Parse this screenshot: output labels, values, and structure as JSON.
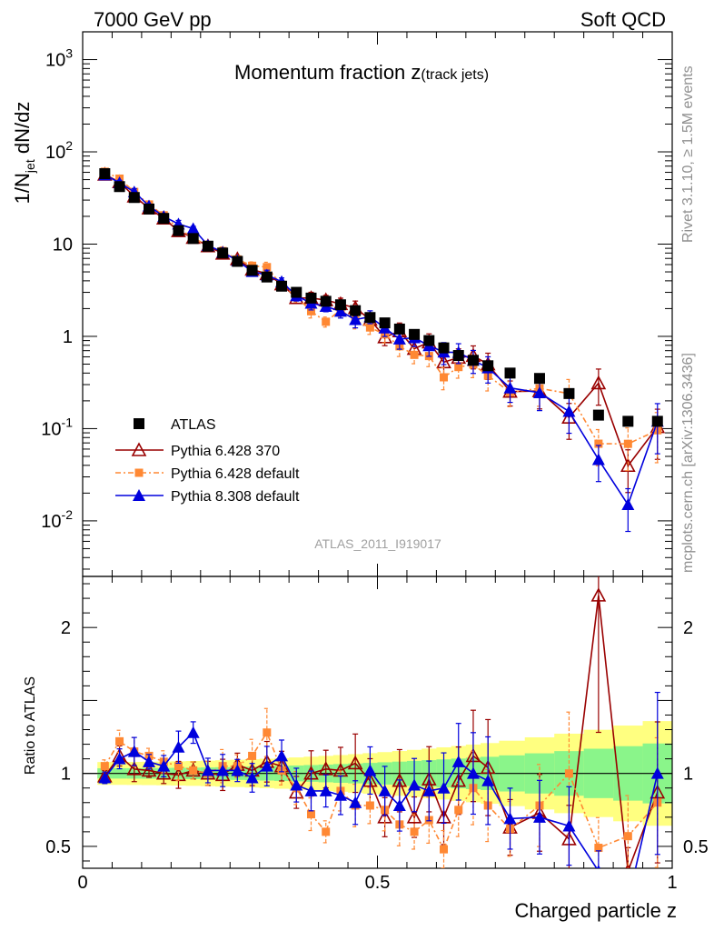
{
  "header": {
    "left": "7000 GeV pp",
    "right": "Soft QCD"
  },
  "side": {
    "rivet": "Rivet 3.1.10, ≥ 1.5M events",
    "mcplots": "mcplots.cern.ch [arXiv:1306.3436]"
  },
  "chart_data": {
    "type": "scatter",
    "title_main": "Momentum fraction z",
    "title_sub": "(track jets)",
    "analysis_id": "ATLAS_2011_I919017",
    "xlabel": "Charged particle z",
    "ylabel_main": {
      "a": "1/N",
      "sub": "jet",
      "b": " dN/dz"
    },
    "ylabel_ratio": "Ratio to ATLAS",
    "xlim": [
      0,
      1
    ],
    "ylim_main": [
      0.0025,
      2000
    ],
    "ylim_ratio": [
      0.35,
      2.35
    ],
    "x_ticks": [
      "0",
      "0.5",
      "1"
    ],
    "y_ticks_main": [
      "10^-2",
      "10^-1",
      "1",
      "10",
      "10^2",
      "10^3"
    ],
    "y_ticks_ratio": [
      "0.5",
      "1",
      "2"
    ],
    "colors": {
      "data": "#000000",
      "py6_370": "#990000",
      "py6_def": "#ff8833",
      "py8": "#0000dd",
      "band_inner": "#8af58a",
      "band_outer": "#ffff80"
    },
    "x": [
      0.0375,
      0.0625,
      0.0875,
      0.1125,
      0.1375,
      0.1625,
      0.1875,
      0.2125,
      0.2375,
      0.2625,
      0.2875,
      0.3125,
      0.3375,
      0.3625,
      0.3875,
      0.4125,
      0.4375,
      0.4625,
      0.4875,
      0.5125,
      0.5375,
      0.5625,
      0.5875,
      0.6125,
      0.6375,
      0.6625,
      0.6875,
      0.725,
      0.775,
      0.825,
      0.875,
      0.925,
      0.975
    ],
    "series": [
      {
        "name": "ATLAS",
        "values": [
          58,
          42,
          32,
          24,
          19,
          14,
          11.5,
          9.5,
          8,
          6.5,
          5.2,
          4.4,
          3.5,
          3.0,
          2.6,
          2.4,
          2.2,
          1.9,
          1.6,
          1.4,
          1.2,
          1.05,
          0.9,
          0.75,
          0.62,
          0.55,
          0.48,
          0.4,
          0.35,
          0.24,
          0.14,
          0.12,
          0.12
        ]
      },
      {
        "name": "Pythia 6.428 370",
        "ratio": [
          0.98,
          1.12,
          1.03,
          1.02,
          1.0,
          0.99,
          1.02,
          1.0,
          0.99,
          1.06,
          1.02,
          1.08,
          1.05,
          0.87,
          1.0,
          1.03,
          1.02,
          1.07,
          0.95,
          0.7,
          0.95,
          0.7,
          0.96,
          0.7,
          0.95,
          1.12,
          1.04,
          0.63,
          0.73,
          0.55,
          2.22,
          0.33,
          0.87
        ]
      },
      {
        "name": "Pythia 6.428 default",
        "ratio": [
          1.05,
          1.22,
          1.15,
          1.12,
          1.08,
          1.05,
          1.02,
          1.0,
          1.05,
          1.05,
          1.12,
          1.28,
          1.02,
          0.9,
          0.72,
          0.6,
          0.88,
          0.78,
          0.78,
          0.75,
          0.65,
          0.6,
          0.68,
          0.48,
          0.75,
          0.9,
          0.78,
          0.62,
          0.78,
          1.0,
          0.49,
          0.57,
          0.8
        ]
      },
      {
        "name": "Pythia 8.308 default",
        "ratio": [
          0.97,
          1.1,
          1.15,
          1.08,
          1.05,
          1.18,
          1.28,
          1.02,
          1.02,
          1.02,
          0.97,
          1.05,
          1.12,
          0.92,
          0.88,
          0.88,
          0.85,
          0.8,
          1.02,
          0.88,
          0.78,
          0.92,
          0.88,
          0.9,
          1.08,
          1.0,
          0.95,
          0.69,
          0.7,
          0.64,
          0.33,
          0.125,
          1.0
        ]
      }
    ],
    "legend": [
      "ATLAS",
      "Pythia 6.428 370",
      "Pythia 6.428 default",
      "Pythia 8.308 default"
    ]
  }
}
